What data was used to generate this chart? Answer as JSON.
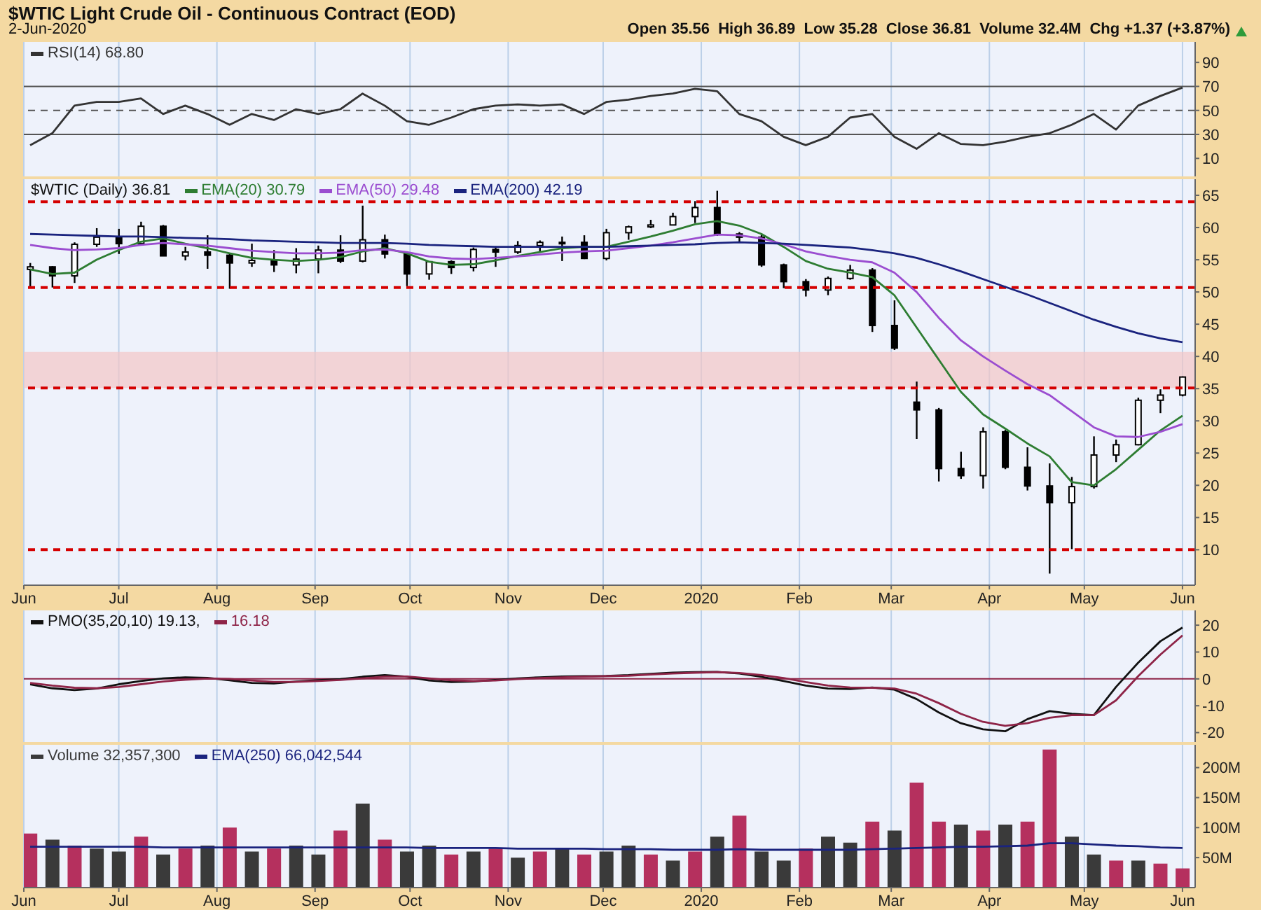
{
  "chart_data": [
    {
      "type": "line",
      "title": "$WTIC Light Crude Oil - Continuous Contract (EOD)",
      "subtitle": "2-Jun-2020",
      "annotations": [
        "Open 35.56  High 36.89  Low 35.28  Close 36.81  Volume 32.4M  Chg +1.37 (+3.87%)"
      ],
      "x": [
        "2019-06-03",
        "2019-06-10",
        "2019-06-17",
        "2019-06-24",
        "2019-07-01",
        "2019-07-08",
        "2019-07-15",
        "2019-07-22",
        "2019-07-29",
        "2019-08-05",
        "2019-08-12",
        "2019-08-19",
        "2019-08-26",
        "2019-09-02",
        "2019-09-09",
        "2019-09-16",
        "2019-09-23",
        "2019-09-30",
        "2019-10-07",
        "2019-10-14",
        "2019-10-21",
        "2019-10-28",
        "2019-11-04",
        "2019-11-11",
        "2019-11-18",
        "2019-11-25",
        "2019-12-02",
        "2019-12-09",
        "2019-12-16",
        "2019-12-23",
        "2019-12-30",
        "2020-01-06",
        "2020-01-13",
        "2020-01-20",
        "2020-01-27",
        "2020-02-03",
        "2020-02-10",
        "2020-02-17",
        "2020-02-24",
        "2020-03-02",
        "2020-03-09",
        "2020-03-16",
        "2020-03-23",
        "2020-03-30",
        "2020-04-06",
        "2020-04-13",
        "2020-04-20",
        "2020-04-27",
        "2020-05-04",
        "2020-05-11",
        "2020-05-18",
        "2020-05-25",
        "2020-06-01"
      ],
      "series": [
        {
          "name": "RSI(14) 68.80",
          "color": "#333333",
          "values": [
            21,
            31,
            54,
            57,
            57,
            60,
            47,
            54,
            47,
            38,
            47,
            42,
            51,
            47,
            51,
            64,
            54,
            41,
            38,
            44,
            51,
            54,
            55,
            54,
            55,
            47,
            57,
            59,
            62,
            64,
            68,
            66,
            47,
            41,
            28,
            21,
            28,
            44,
            47,
            28,
            18,
            31,
            22,
            21,
            24,
            28,
            31,
            38,
            47,
            34,
            54,
            62,
            69
          ]
        }
      ],
      "xlim": [
        "2019-06-01",
        "2020-06-05"
      ],
      "xticks": [
        {
          "value": "2019-06-01",
          "label": null
        },
        {
          "value": "2019-07-01",
          "label": null
        },
        {
          "value": "2019-08-01",
          "label": null
        },
        {
          "value": "2019-09-01",
          "label": null
        },
        {
          "value": "2019-10-01",
          "label": null
        },
        {
          "value": "2019-11-01",
          "label": null
        },
        {
          "value": "2019-12-01",
          "label": null
        },
        {
          "value": "2020-01-01",
          "label": null
        },
        {
          "value": "2020-02-01",
          "label": null
        },
        {
          "value": "2020-03-01",
          "label": null
        },
        {
          "value": "2020-04-01",
          "label": null
        },
        {
          "value": "2020-05-01",
          "label": null
        },
        {
          "value": "2020-06-01",
          "label": null
        }
      ],
      "ylim": [
        -5,
        107
      ],
      "yticks": [
        10,
        30,
        50,
        70,
        90
      ],
      "ref_lines": [
        {
          "axis": "y",
          "value": 70,
          "color": "#555555",
          "line_style": "solid"
        },
        {
          "axis": "y",
          "value": 30,
          "color": "#555555",
          "line_style": "solid"
        },
        {
          "axis": "y",
          "value": 50,
          "color": "#555555",
          "line_style": "dashed"
        }
      ],
      "grid": true,
      "legend": "top left",
      "tick_labels": "y"
    },
    {
      "type": "candlestick",
      "legend_title": "$WTIC (Daily) 36.81",
      "x": [
        "2019-06-03",
        "2019-06-10",
        "2019-06-17",
        "2019-06-24",
        "2019-07-01",
        "2019-07-08",
        "2019-07-15",
        "2019-07-22",
        "2019-07-29",
        "2019-08-05",
        "2019-08-12",
        "2019-08-19",
        "2019-08-26",
        "2019-09-02",
        "2019-09-09",
        "2019-09-16",
        "2019-09-23",
        "2019-09-30",
        "2019-10-07",
        "2019-10-14",
        "2019-10-21",
        "2019-10-28",
        "2019-11-04",
        "2019-11-11",
        "2019-11-18",
        "2019-11-25",
        "2019-12-02",
        "2019-12-09",
        "2019-12-16",
        "2019-12-23",
        "2019-12-30",
        "2020-01-06",
        "2020-01-13",
        "2020-01-20",
        "2020-01-27",
        "2020-02-03",
        "2020-02-10",
        "2020-02-17",
        "2020-02-24",
        "2020-03-02",
        "2020-03-09",
        "2020-03-16",
        "2020-03-23",
        "2020-03-30",
        "2020-04-06",
        "2020-04-13",
        "2020-04-20",
        "2020-04-27",
        "2020-05-04",
        "2020-05-11",
        "2020-05-18",
        "2020-05-25",
        "2020-06-01"
      ],
      "ohlc": [
        [
          53.5,
          54.5,
          50.6,
          53.9
        ],
        [
          53.9,
          54.0,
          50.7,
          52.5
        ],
        [
          52.5,
          57.7,
          51.4,
          57.4
        ],
        [
          57.4,
          59.9,
          57.0,
          58.5
        ],
        [
          58.5,
          59.8,
          55.9,
          57.5
        ],
        [
          57.5,
          60.9,
          57.2,
          60.2
        ],
        [
          60.2,
          60.4,
          55.6,
          55.6
        ],
        [
          55.6,
          57.0,
          54.9,
          56.2
        ],
        [
          56.2,
          58.8,
          53.6,
          55.7
        ],
        [
          55.7,
          55.9,
          50.5,
          54.5
        ],
        [
          54.5,
          57.5,
          53.9,
          54.9
        ],
        [
          54.9,
          56.5,
          53.1,
          54.2
        ],
        [
          54.2,
          56.8,
          52.9,
          55.1
        ],
        [
          55.1,
          57.2,
          52.9,
          56.5
        ],
        [
          56.5,
          58.8,
          54.5,
          54.8
        ],
        [
          54.8,
          63.4,
          54.6,
          58.1
        ],
        [
          58.1,
          58.9,
          55.2,
          55.9
        ],
        [
          55.9,
          56.0,
          50.9,
          52.8
        ],
        [
          52.8,
          54.7,
          51.9,
          54.7
        ],
        [
          54.7,
          54.9,
          52.8,
          53.8
        ],
        [
          53.8,
          56.9,
          53.2,
          56.6
        ],
        [
          56.6,
          57.1,
          53.9,
          56.2
        ],
        [
          56.2,
          57.9,
          55.9,
          57.2
        ],
        [
          57.2,
          58.0,
          56.1,
          57.7
        ],
        [
          57.7,
          58.6,
          54.8,
          57.7
        ],
        [
          57.7,
          58.8,
          55.1,
          55.2
        ],
        [
          55.2,
          59.8,
          54.9,
          59.2
        ],
        [
          59.2,
          60.3,
          58.1,
          60.1
        ],
        [
          60.1,
          61.2,
          59.9,
          60.4
        ],
        [
          60.4,
          62.3,
          60.4,
          61.7
        ],
        [
          61.7,
          64.1,
          60.7,
          63.1
        ],
        [
          63.1,
          65.7,
          58.7,
          59.0
        ],
        [
          59.0,
          59.3,
          57.7,
          58.5
        ],
        [
          58.5,
          58.9,
          53.9,
          54.2
        ],
        [
          54.2,
          54.4,
          50.6,
          51.6
        ],
        [
          51.6,
          52.0,
          49.3,
          50.3
        ],
        [
          50.3,
          52.4,
          49.5,
          52.1
        ],
        [
          52.1,
          54.2,
          51.9,
          53.4
        ],
        [
          53.4,
          53.7,
          43.8,
          44.8
        ],
        [
          44.8,
          48.7,
          41.0,
          41.3
        ],
        [
          32.9,
          36.1,
          27.2,
          31.7
        ],
        [
          31.7,
          32.0,
          20.6,
          22.6
        ],
        [
          22.6,
          25.2,
          21.0,
          21.5
        ],
        [
          21.5,
          29.0,
          19.5,
          28.3
        ],
        [
          28.3,
          28.6,
          22.5,
          22.8
        ],
        [
          22.8,
          25.9,
          19.2,
          19.9
        ],
        [
          19.9,
          23.4,
          6.3,
          17.3
        ],
        [
          17.3,
          21.3,
          10.1,
          19.8
        ],
        [
          19.8,
          27.6,
          19.5,
          24.7
        ],
        [
          24.7,
          27.1,
          23.6,
          26.3
        ],
        [
          26.3,
          33.6,
          26.2,
          33.2
        ],
        [
          33.2,
          34.9,
          31.2,
          34.0
        ],
        [
          34.0,
          36.9,
          33.8,
          36.8
        ]
      ],
      "series": [
        {
          "name": "EMA(20) 30.79",
          "color": "#2e7d32",
          "type": "line",
          "values": [
            53.5,
            52.8,
            53.0,
            55.0,
            56.5,
            57.8,
            58.3,
            57.5,
            56.8,
            56.0,
            55.3,
            55.0,
            54.8,
            55.0,
            55.4,
            56.3,
            56.8,
            56.0,
            54.7,
            54.2,
            54.3,
            54.9,
            55.6,
            56.2,
            56.8,
            57.0,
            57.0,
            57.8,
            58.6,
            59.5,
            60.5,
            61.0,
            60.3,
            59.0,
            57.0,
            54.8,
            53.6,
            53.0,
            52.3,
            49.5,
            44.5,
            39.5,
            34.5,
            31.0,
            28.8,
            26.5,
            24.5,
            20.5,
            20.0,
            22.5,
            25.5,
            28.5,
            30.8
          ]
        },
        {
          "name": "EMA(50) 29.48",
          "color": "#9b4dd0",
          "type": "line",
          "values": [
            57.3,
            56.8,
            56.5,
            56.6,
            56.8,
            57.3,
            57.6,
            57.4,
            57.2,
            56.8,
            56.4,
            56.2,
            56.0,
            56.0,
            56.1,
            56.5,
            56.6,
            56.2,
            55.5,
            55.2,
            55.1,
            55.3,
            55.5,
            55.8,
            56.1,
            56.3,
            56.4,
            56.8,
            57.2,
            57.7,
            58.3,
            58.9,
            58.8,
            58.3,
            57.4,
            56.3,
            55.6,
            55.0,
            54.6,
            53.0,
            50.0,
            46.0,
            42.5,
            40.0,
            37.8,
            35.7,
            34.0,
            31.5,
            29.0,
            27.6,
            27.5,
            28.3,
            29.5
          ]
        },
        {
          "name": "EMA(200) 42.19",
          "color": "#1a237e",
          "type": "line",
          "values": [
            59.0,
            58.9,
            58.8,
            58.7,
            58.6,
            58.6,
            58.5,
            58.4,
            58.3,
            58.2,
            58.0,
            57.9,
            57.8,
            57.7,
            57.6,
            57.6,
            57.6,
            57.5,
            57.3,
            57.2,
            57.1,
            57.0,
            57.0,
            57.0,
            57.0,
            57.0,
            57.0,
            57.1,
            57.2,
            57.3,
            57.4,
            57.6,
            57.7,
            57.6,
            57.5,
            57.3,
            57.1,
            56.9,
            56.5,
            56.0,
            55.3,
            54.3,
            53.2,
            52.0,
            50.8,
            49.6,
            48.3,
            47.0,
            45.7,
            44.6,
            43.6,
            42.8,
            42.2
          ]
        }
      ],
      "xlim": [
        "2019-06-01",
        "2020-06-05"
      ],
      "xticks": [
        {
          "value": "2019-06-01",
          "label": "Jun"
        },
        {
          "value": "2019-07-01",
          "label": "Jul"
        },
        {
          "value": "2019-08-01",
          "label": "Aug"
        },
        {
          "value": "2019-09-01",
          "label": "Sep"
        },
        {
          "value": "2019-10-01",
          "label": "Oct"
        },
        {
          "value": "2019-11-01",
          "label": "Nov"
        },
        {
          "value": "2019-12-01",
          "label": "Dec"
        },
        {
          "value": "2020-01-01",
          "label": "2020"
        },
        {
          "value": "2020-02-01",
          "label": "Feb"
        },
        {
          "value": "2020-03-01",
          "label": "Mar"
        },
        {
          "value": "2020-04-01",
          "label": "Apr"
        },
        {
          "value": "2020-05-01",
          "label": "May"
        },
        {
          "value": "2020-06-01",
          "label": "Jun"
        }
      ],
      "ylim": [
        4.5,
        67.5
      ],
      "yticks": [
        10,
        15,
        20,
        25,
        30,
        35,
        40,
        45,
        50,
        55,
        60,
        65
      ],
      "ref_lines": [
        {
          "axis": "y",
          "value": 64,
          "color": "#d50000",
          "line_style": "dashed"
        },
        {
          "axis": "y",
          "value": 50.7,
          "color": "#d50000",
          "line_style": "dashed"
        },
        {
          "axis": "y",
          "value": 35.1,
          "color": "#d50000",
          "line_style": "dashed"
        },
        {
          "axis": "y",
          "value": 10,
          "color": "#d50000",
          "line_style": "dashed"
        }
      ],
      "bands": [
        {
          "axis": "y",
          "from": 35.1,
          "to": 40.7,
          "color": "#f3c6c6"
        }
      ],
      "grid": true,
      "legend": "top left"
    },
    {
      "type": "line",
      "x": [
        "2019-06-03",
        "2019-06-10",
        "2019-06-17",
        "2019-06-24",
        "2019-07-01",
        "2019-07-08",
        "2019-07-15",
        "2019-07-22",
        "2019-07-29",
        "2019-08-05",
        "2019-08-12",
        "2019-08-19",
        "2019-08-26",
        "2019-09-02",
        "2019-09-09",
        "2019-09-16",
        "2019-09-23",
        "2019-09-30",
        "2019-10-07",
        "2019-10-14",
        "2019-10-21",
        "2019-10-28",
        "2019-11-04",
        "2019-11-11",
        "2019-11-18",
        "2019-11-25",
        "2019-12-02",
        "2019-12-09",
        "2019-12-16",
        "2019-12-23",
        "2019-12-30",
        "2020-01-06",
        "2020-01-13",
        "2020-01-20",
        "2020-01-27",
        "2020-02-03",
        "2020-02-10",
        "2020-02-17",
        "2020-02-24",
        "2020-03-02",
        "2020-03-09",
        "2020-03-16",
        "2020-03-23",
        "2020-03-30",
        "2020-04-06",
        "2020-04-13",
        "2020-04-20",
        "2020-04-27",
        "2020-05-04",
        "2020-05-11",
        "2020-05-18",
        "2020-05-25",
        "2020-06-01"
      ],
      "series": [
        {
          "name": "PMO(35,20,10) 19.13,",
          "color": "#111111",
          "values": [
            -2.0,
            -3.5,
            -4.2,
            -3.6,
            -2.0,
            -0.8,
            0.2,
            0.6,
            0.4,
            -0.5,
            -1.5,
            -1.7,
            -1.0,
            -0.5,
            -0.1,
            0.8,
            1.4,
            0.8,
            -0.6,
            -1.2,
            -1.0,
            -0.4,
            0.2,
            0.6,
            0.9,
            1.0,
            1.1,
            1.4,
            1.9,
            2.3,
            2.5,
            2.6,
            2.0,
            0.8,
            -0.8,
            -2.5,
            -3.6,
            -3.8,
            -3.2,
            -4.0,
            -7.5,
            -12.5,
            -16.5,
            -18.8,
            -19.5,
            -15.0,
            -12.0,
            -13.0,
            -13.5,
            -3.0,
            6.0,
            14.0,
            19.1
          ]
        },
        {
          "name": "16.18",
          "color": "#8e2447",
          "values": [
            -1.5,
            -2.5,
            -3.3,
            -3.5,
            -3.0,
            -2.0,
            -1.0,
            -0.3,
            0.1,
            0.0,
            -0.6,
            -1.1,
            -1.1,
            -0.8,
            -0.4,
            0.2,
            0.8,
            0.9,
            0.2,
            -0.5,
            -0.8,
            -0.6,
            -0.1,
            0.3,
            0.6,
            0.8,
            1.0,
            1.2,
            1.6,
            2.0,
            2.3,
            2.5,
            2.2,
            1.4,
            0.3,
            -1.2,
            -2.5,
            -3.2,
            -3.3,
            -3.6,
            -5.5,
            -9.0,
            -13.0,
            -16.0,
            -17.5,
            -16.5,
            -14.5,
            -13.5,
            -13.5,
            -8.0,
            1.0,
            9.0,
            16.2
          ]
        }
      ],
      "xlim": [
        "2019-06-01",
        "2020-06-05"
      ],
      "xticks": [
        {
          "value": "2019-06-01",
          "label": null
        },
        {
          "value": "2019-07-01",
          "label": null
        },
        {
          "value": "2019-08-01",
          "label": null
        },
        {
          "value": "2019-09-01",
          "label": null
        },
        {
          "value": "2019-10-01",
          "label": null
        },
        {
          "value": "2019-11-01",
          "label": null
        },
        {
          "value": "2019-12-01",
          "label": null
        },
        {
          "value": "2020-01-01",
          "label": null
        },
        {
          "value": "2020-02-01",
          "label": null
        },
        {
          "value": "2020-03-01",
          "label": null
        },
        {
          "value": "2020-04-01",
          "label": null
        },
        {
          "value": "2020-05-01",
          "label": null
        },
        {
          "value": "2020-06-01",
          "label": null
        }
      ],
      "ylim": [
        -23.5,
        25.5
      ],
      "yticks": [
        -20,
        -10,
        0,
        10,
        20
      ],
      "ref_lines": [
        {
          "axis": "y",
          "value": 0,
          "color": "#8e2447",
          "line_style": "solid"
        }
      ],
      "grid": true,
      "legend": "top left",
      "tick_labels": "y"
    },
    {
      "type": "bar",
      "x": [
        "2019-06-03",
        "2019-06-10",
        "2019-06-17",
        "2019-06-24",
        "2019-07-01",
        "2019-07-08",
        "2019-07-15",
        "2019-07-22",
        "2019-07-29",
        "2019-08-05",
        "2019-08-12",
        "2019-08-19",
        "2019-08-26",
        "2019-09-02",
        "2019-09-09",
        "2019-09-16",
        "2019-09-23",
        "2019-09-30",
        "2019-10-07",
        "2019-10-14",
        "2019-10-21",
        "2019-10-28",
        "2019-11-04",
        "2019-11-11",
        "2019-11-18",
        "2019-11-25",
        "2019-12-02",
        "2019-12-09",
        "2019-12-16",
        "2019-12-23",
        "2019-12-30",
        "2020-01-06",
        "2020-01-13",
        "2020-01-20",
        "2020-01-27",
        "2020-02-03",
        "2020-02-10",
        "2020-02-17",
        "2020-02-24",
        "2020-03-02",
        "2020-03-09",
        "2020-03-16",
        "2020-03-23",
        "2020-03-30",
        "2020-04-06",
        "2020-04-13",
        "2020-04-20",
        "2020-04-27",
        "2020-05-04",
        "2020-05-11",
        "2020-05-18",
        "2020-05-25",
        "2020-06-01"
      ],
      "series": [
        {
          "name": "Volume 32,357,300",
          "type": "bar",
          "color": "#3a3a3a",
          "values": [
            90,
            80,
            70,
            65,
            60,
            85,
            55,
            65,
            70,
            100,
            60,
            65,
            70,
            55,
            95,
            140,
            80,
            60,
            70,
            55,
            60,
            65,
            50,
            60,
            65,
            55,
            60,
            70,
            55,
            45,
            60,
            85,
            120,
            60,
            45,
            65,
            85,
            75,
            110,
            95,
            175,
            110,
            105,
            95,
            105,
            110,
            230,
            85,
            55,
            45,
            45,
            40,
            32
          ],
          "colors": [
            "#b5305e",
            "#3a3a3a",
            "#b5305e",
            "#3a3a3a",
            "#3a3a3a",
            "#b5305e",
            "#3a3a3a",
            "#b5305e",
            "#3a3a3a",
            "#b5305e",
            "#3a3a3a",
            "#b5305e",
            "#3a3a3a",
            "#3a3a3a",
            "#b5305e",
            "#3a3a3a",
            "#b5305e",
            "#3a3a3a",
            "#3a3a3a",
            "#b5305e",
            "#3a3a3a",
            "#b5305e",
            "#3a3a3a",
            "#b5305e",
            "#3a3a3a",
            "#b5305e",
            "#3a3a3a",
            "#3a3a3a",
            "#b5305e",
            "#3a3a3a",
            "#b5305e",
            "#3a3a3a",
            "#b5305e",
            "#3a3a3a",
            "#3a3a3a",
            "#b5305e",
            "#3a3a3a",
            "#3a3a3a",
            "#b5305e",
            "#3a3a3a",
            "#b5305e",
            "#b5305e",
            "#3a3a3a",
            "#b5305e",
            "#3a3a3a",
            "#b5305e",
            "#b5305e",
            "#3a3a3a",
            "#3a3a3a",
            "#b5305e",
            "#3a3a3a",
            "#b5305e",
            "#b5305e"
          ]
        },
        {
          "name": "EMA(250) 66,042,544",
          "type": "line",
          "color": "#1a237e",
          "values": [
            68,
            68,
            68,
            68,
            68,
            68,
            67,
            67,
            67,
            67,
            67,
            67,
            67,
            67,
            67,
            67,
            67,
            67,
            66,
            66,
            66,
            66,
            65,
            65,
            65,
            65,
            64,
            64,
            64,
            63,
            63,
            63,
            64,
            63,
            63,
            63,
            63,
            63,
            64,
            65,
            66,
            67,
            68,
            68,
            69,
            70,
            74,
            74,
            72,
            70,
            69,
            67,
            66
          ]
        }
      ],
      "xlim": [
        "2019-06-01",
        "2020-06-05"
      ],
      "xticks": [
        {
          "value": "2019-06-01",
          "label": "Jun"
        },
        {
          "value": "2019-07-01",
          "label": "Jul"
        },
        {
          "value": "2019-08-01",
          "label": "Aug"
        },
        {
          "value": "2019-09-01",
          "label": "Sep"
        },
        {
          "value": "2019-10-01",
          "label": "Oct"
        },
        {
          "value": "2019-11-01",
          "label": "Nov"
        },
        {
          "value": "2019-12-01",
          "label": "Dec"
        },
        {
          "value": "2020-01-01",
          "label": "2020"
        },
        {
          "value": "2020-02-01",
          "label": "Feb"
        },
        {
          "value": "2020-03-01",
          "label": "Mar"
        },
        {
          "value": "2020-04-01",
          "label": "Apr"
        },
        {
          "value": "2020-05-01",
          "label": "May"
        },
        {
          "value": "2020-06-01",
          "label": "Jun"
        }
      ],
      "ylim": [
        0,
        238
      ],
      "yticks": [
        {
          "value": 50,
          "label": "50M"
        },
        {
          "value": 100,
          "label": "100M"
        },
        {
          "value": 150,
          "label": "150M"
        },
        {
          "value": 200,
          "label": "200M"
        }
      ],
      "grid": true,
      "legend": "top left"
    }
  ]
}
